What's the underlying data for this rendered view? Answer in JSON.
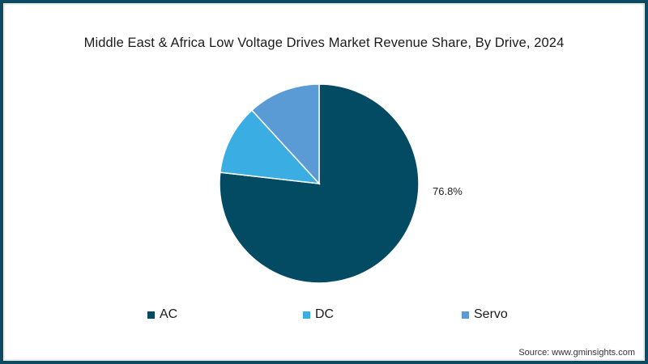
{
  "chart_data": {
    "type": "pie",
    "title": "Middle East & Africa Low Voltage Drives Market Revenue Share, By Drive, 2024",
    "categories": [
      "AC",
      "DC",
      "Servo"
    ],
    "values": [
      76.8,
      11.4,
      11.8
    ],
    "colors": [
      "#034a63",
      "#3aaee3",
      "#5a9bd5"
    ],
    "data_labels": [
      "76.8%",
      "",
      ""
    ],
    "legend_position": "bottom",
    "start_angle": "top, clockwise"
  },
  "header": {
    "title": "Middle East & Africa Low Voltage Drives Market Revenue Share, By Drive, 2024"
  },
  "labels": {
    "ac_pct": "76.8%"
  },
  "legend": {
    "items": [
      {
        "label": "AC",
        "color": "#034a63"
      },
      {
        "label": "DC",
        "color": "#3aaee3"
      },
      {
        "label": "Servo",
        "color": "#5a9bd5"
      }
    ]
  },
  "footer": {
    "source": "Source: www.gminsights.com"
  },
  "frame_color": "#0e4a62"
}
